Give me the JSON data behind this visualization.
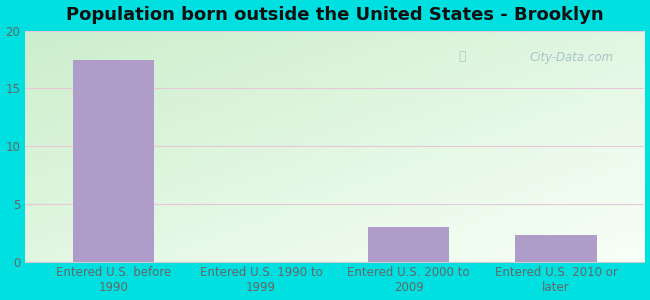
{
  "title": "Population born outside the United States - Brooklyn",
  "categories": [
    "Entered U.S. before\n1990",
    "Entered U.S. 1990 to\n1999",
    "Entered U.S. 2000 to\n2009",
    "Entered U.S. 2010 or\nlater"
  ],
  "values": [
    17.5,
    0,
    3.0,
    2.3
  ],
  "bar_color": "#b09cc8",
  "ylim": [
    0,
    20
  ],
  "yticks": [
    0,
    5,
    10,
    15,
    20
  ],
  "figure_bg_color": "#00e0e0",
  "grid_color": "#e8c8d8",
  "title_fontsize": 13,
  "tick_fontsize": 8.5,
  "watermark_text": "City-Data.com",
  "watermark_color": "#a8c4c8",
  "bg_color_topleft": "#c8e8d0",
  "bg_color_bottomright": "#f0f8f8"
}
